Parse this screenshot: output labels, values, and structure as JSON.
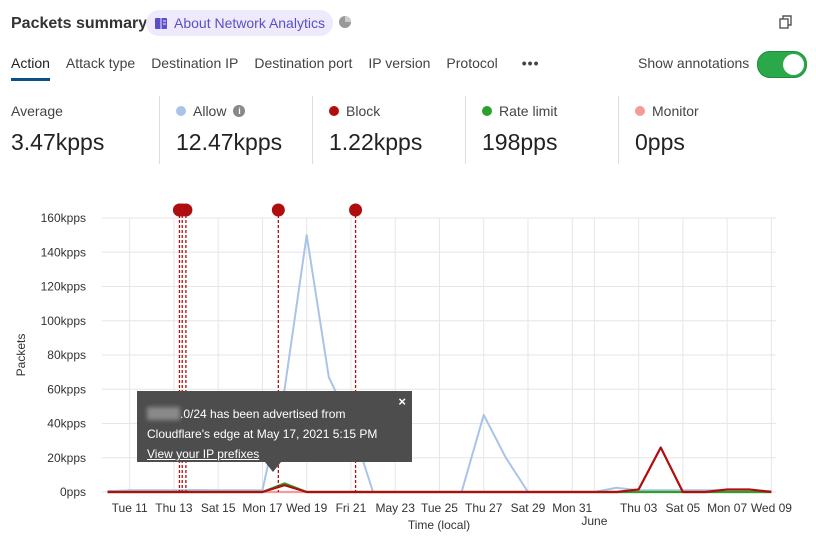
{
  "header": {
    "title": "Packets summary",
    "about_label": "About Network Analytics",
    "about_icon": "book-icon",
    "pie_icon": "pie-chart-icon",
    "copy_icon": "copy-icon"
  },
  "tabs": [
    {
      "label": "Action",
      "active": true
    },
    {
      "label": "Attack type"
    },
    {
      "label": "Destination IP"
    },
    {
      "label": "Destination port"
    },
    {
      "label": "IP version"
    },
    {
      "label": "Protocol"
    },
    {
      "label": "•••"
    }
  ],
  "annotations_toggle": {
    "label": "Show annotations",
    "on": true
  },
  "stats": [
    {
      "label": "Average",
      "value": "3.47kpps"
    },
    {
      "label": "Allow",
      "value": "12.47kpps",
      "color": "#a9c4e6",
      "info": true
    },
    {
      "label": "Block",
      "value": "1.22kpps",
      "color": "#b00e0e"
    },
    {
      "label": "Rate limit",
      "value": "198pps",
      "color": "#2ca02c"
    },
    {
      "label": "Monitor",
      "value": "0pps",
      "color": "#f59a9a"
    }
  ],
  "tooltip": {
    "text": ".0/24 has been advertised from",
    "text2": "Cloudflare's edge at May 17, 2021 5:15 PM",
    "link": "View your IP prefixes",
    "close": "×"
  },
  "chart_data": {
    "type": "line",
    "xlabel": "Time (local)",
    "ylabel": "Packets",
    "ylim": [
      0,
      160000
    ],
    "yticks": [
      {
        "v": 0,
        "l": "0pps"
      },
      {
        "v": 20000,
        "l": "20kpps"
      },
      {
        "v": 40000,
        "l": "40kpps"
      },
      {
        "v": 60000,
        "l": "60kpps"
      },
      {
        "v": 80000,
        "l": "80kpps"
      },
      {
        "v": 100000,
        "l": "100kpps"
      },
      {
        "v": 120000,
        "l": "120kpps"
      },
      {
        "v": 140000,
        "l": "140kpps"
      },
      {
        "v": 160000,
        "l": "160kpps"
      }
    ],
    "xlim": [
      "2021-05-09T18:00",
      "2021-06-09T05:00"
    ],
    "xticks": [
      {
        "d": "2021-05-11",
        "l": "Tue 11"
      },
      {
        "d": "2021-05-13",
        "l": "Thu 13"
      },
      {
        "d": "2021-05-15",
        "l": "Sat 15"
      },
      {
        "d": "2021-05-17",
        "l": "Mon 17"
      },
      {
        "d": "2021-05-19",
        "l": "Wed 19"
      },
      {
        "d": "2021-05-21",
        "l": "Fri 21"
      },
      {
        "d": "2021-05-23",
        "l": "May 23"
      },
      {
        "d": "2021-05-25",
        "l": "Tue 25"
      },
      {
        "d": "2021-05-27",
        "l": "Thu 27"
      },
      {
        "d": "2021-05-29",
        "l": "Sat 29"
      },
      {
        "d": "2021-05-31",
        "l": "Mon 31"
      },
      {
        "d": "2021-06-01",
        "l": "June"
      },
      {
        "d": "2021-06-03",
        "l": "Thu 03"
      },
      {
        "d": "2021-06-05",
        "l": "Sat 05"
      },
      {
        "d": "2021-06-07",
        "l": "Mon 07"
      },
      {
        "d": "2021-06-09",
        "l": "Wed 09"
      }
    ],
    "x": [
      "2021-05-10",
      "2021-05-11",
      "2021-05-12",
      "2021-05-13",
      "2021-05-14",
      "2021-05-15",
      "2021-05-16",
      "2021-05-17",
      "2021-05-18",
      "2021-05-19",
      "2021-05-20",
      "2021-05-21",
      "2021-05-22",
      "2021-05-23",
      "2021-05-24",
      "2021-05-25",
      "2021-05-26",
      "2021-05-27",
      "2021-05-28",
      "2021-05-29",
      "2021-05-30",
      "2021-05-31",
      "2021-06-01",
      "2021-06-02",
      "2021-06-03",
      "2021-06-04",
      "2021-06-05",
      "2021-06-06",
      "2021-06-07",
      "2021-06-08",
      "2021-06-09"
    ],
    "series": [
      {
        "name": "Allow",
        "color": "#a9c4e6",
        "values": [
          500,
          1000,
          1000,
          1000,
          1200,
          1000,
          1000,
          1000,
          60000,
          150000,
          67000,
          40000,
          0,
          0,
          0,
          0,
          0,
          45000,
          20000,
          0,
          0,
          0,
          0,
          2500,
          1000,
          1000,
          1000,
          1000,
          1000,
          1000,
          500
        ]
      },
      {
        "name": "Monitor",
        "color": "#f59a9a",
        "values": [
          0,
          0,
          0,
          0,
          0,
          0,
          0,
          0,
          0,
          0,
          0,
          0,
          0,
          0,
          0,
          0,
          0,
          0,
          0,
          0,
          0,
          0,
          0,
          0,
          0,
          0,
          0,
          0,
          0,
          0,
          0
        ]
      },
      {
        "name": "Rate limit",
        "color": "#2ca02c",
        "values": [
          0,
          0,
          0,
          0,
          0,
          0,
          0,
          0,
          5000,
          0,
          0,
          0,
          0,
          0,
          0,
          0,
          0,
          0,
          0,
          0,
          0,
          0,
          0,
          0,
          0,
          0,
          0,
          0,
          0,
          0,
          0
        ]
      },
      {
        "name": "Block",
        "color": "#b00e0e",
        "values": [
          0,
          0,
          0,
          0,
          0,
          0,
          0,
          0,
          4000,
          0,
          0,
          0,
          0,
          0,
          0,
          0,
          0,
          0,
          0,
          0,
          0,
          0,
          0,
          0,
          1500,
          26000,
          0,
          0,
          1500,
          1500,
          0
        ]
      }
    ],
    "annotations": [
      "2021-05-13T06:00",
      "2021-05-13T09:00",
      "2021-05-13T13:00",
      "2021-05-17T17:15",
      "2021-05-21T05:00"
    ],
    "annotation_color": "#b00e0e",
    "grid": true
  }
}
